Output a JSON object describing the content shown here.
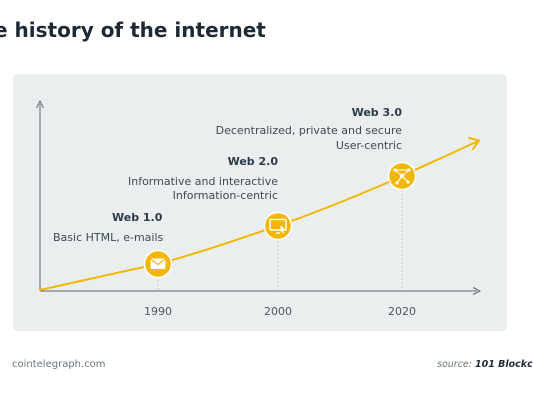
{
  "title": "e history of the internet",
  "accent_color": "#f2b705",
  "stages": [
    {
      "year": "1990",
      "label": "Web 1.0",
      "desc_lines": [
        "Basic HTML, e-mails"
      ],
      "icon": "envelope-icon"
    },
    {
      "year": "2000",
      "label": "Web 2.0",
      "desc_lines": [
        "Informative and interactive",
        "Information-centric"
      ],
      "icon": "monitor-cursor-icon"
    },
    {
      "year": "2020",
      "label": "Web 3.0",
      "desc_lines": [
        "Decentralized, private and secure",
        "User-centric"
      ],
      "icon": "network-nodes-icon"
    }
  ],
  "footer": {
    "site": "cointelegraph.com",
    "source_prefix": "source:",
    "source_name": "101 Blockc"
  }
}
